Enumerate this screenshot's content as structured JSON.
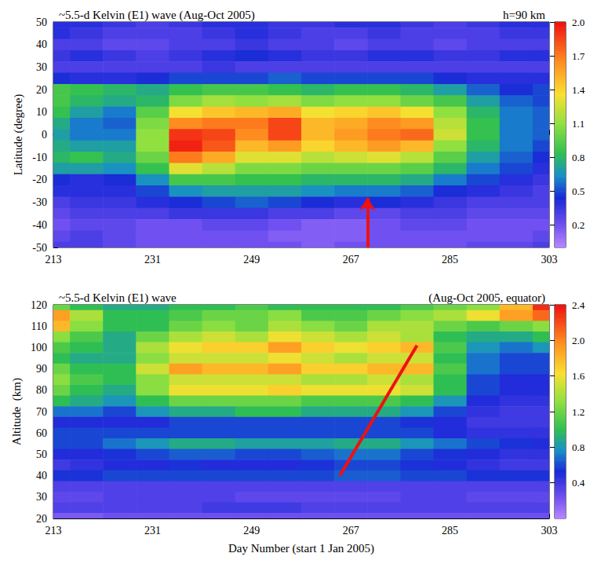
{
  "chart_data": [
    {
      "type": "heatmap",
      "title": "~5.5-d Kelvin (E1) wave (Aug-Oct 2005)",
      "annotation": "h=90 km",
      "ylabel": "Latitude (degree)",
      "x": [
        213,
        219,
        225,
        231,
        237,
        243,
        249,
        255,
        261,
        267,
        273,
        279,
        285,
        291,
        297,
        303
      ],
      "y": [
        50,
        45,
        40,
        35,
        30,
        25,
        20,
        15,
        10,
        5,
        0,
        -5,
        -10,
        -15,
        -20,
        -25,
        -30,
        -35,
        -40,
        -45,
        -50
      ],
      "z": [
        [
          0.4,
          0.4,
          0.35,
          0.3,
          0.35,
          0.4,
          0.4,
          0.35,
          0.35,
          0.4,
          0.4,
          0.35,
          0.3,
          0.35,
          0.4,
          0.4
        ],
        [
          0.4,
          0.35,
          0.3,
          0.3,
          0.3,
          0.35,
          0.4,
          0.35,
          0.3,
          0.3,
          0.35,
          0.3,
          0.3,
          0.3,
          0.35,
          0.35
        ],
        [
          0.3,
          0.3,
          0.25,
          0.25,
          0.3,
          0.3,
          0.35,
          0.3,
          0.3,
          0.25,
          0.3,
          0.3,
          0.25,
          0.3,
          0.3,
          0.3
        ],
        [
          0.35,
          0.4,
          0.35,
          0.3,
          0.35,
          0.4,
          0.45,
          0.4,
          0.35,
          0.35,
          0.4,
          0.4,
          0.35,
          0.35,
          0.4,
          0.4
        ],
        [
          0.3,
          0.3,
          0.3,
          0.3,
          0.3,
          0.35,
          0.3,
          0.3,
          0.3,
          0.3,
          0.3,
          0.3,
          0.3,
          0.3,
          0.3,
          0.3
        ],
        [
          0.45,
          0.4,
          0.4,
          0.45,
          0.5,
          0.5,
          0.5,
          0.55,
          0.5,
          0.5,
          0.5,
          0.5,
          0.45,
          0.4,
          0.4,
          0.4
        ],
        [
          0.9,
          0.85,
          0.8,
          0.75,
          0.85,
          0.9,
          0.9,
          0.85,
          0.8,
          0.85,
          0.85,
          0.8,
          0.7,
          0.55,
          0.45,
          0.5
        ],
        [
          0.9,
          0.8,
          0.75,
          0.8,
          1.05,
          1.15,
          1.1,
          1.15,
          1.05,
          1.1,
          1.1,
          1.0,
          0.9,
          0.7,
          0.55,
          0.5
        ],
        [
          0.85,
          0.7,
          0.6,
          0.95,
          1.35,
          1.45,
          1.5,
          1.55,
          1.35,
          1.4,
          1.45,
          1.35,
          1.1,
          0.8,
          0.6,
          0.55
        ],
        [
          0.75,
          0.6,
          0.55,
          1.05,
          1.65,
          1.7,
          1.7,
          1.85,
          1.5,
          1.55,
          1.65,
          1.6,
          1.2,
          0.85,
          0.6,
          0.55
        ],
        [
          0.7,
          0.6,
          0.6,
          1.1,
          1.9,
          1.85,
          1.65,
          1.85,
          1.5,
          1.6,
          1.7,
          1.75,
          1.25,
          0.85,
          0.6,
          0.55
        ],
        [
          0.75,
          0.7,
          0.7,
          1.1,
          1.95,
          1.8,
          1.5,
          1.6,
          1.4,
          1.5,
          1.6,
          1.5,
          1.1,
          0.8,
          0.6,
          0.5
        ],
        [
          0.8,
          0.85,
          0.75,
          1.0,
          1.7,
          1.55,
          1.3,
          1.3,
          1.2,
          1.25,
          1.3,
          1.2,
          0.95,
          0.7,
          0.55,
          0.45
        ],
        [
          0.7,
          0.7,
          0.65,
          0.85,
          1.3,
          1.2,
          1.05,
          1.05,
          1.0,
          1.0,
          1.0,
          0.95,
          0.8,
          0.6,
          0.5,
          0.4
        ],
        [
          0.45,
          0.4,
          0.45,
          0.65,
          0.9,
          0.9,
          0.85,
          0.85,
          0.8,
          0.8,
          0.8,
          0.75,
          0.6,
          0.5,
          0.4,
          0.35
        ],
        [
          0.4,
          0.4,
          0.4,
          0.5,
          0.65,
          0.7,
          0.7,
          0.7,
          0.65,
          0.6,
          0.6,
          0.55,
          0.45,
          0.4,
          0.35,
          0.3
        ],
        [
          0.3,
          0.35,
          0.35,
          0.4,
          0.45,
          0.5,
          0.55,
          0.5,
          0.45,
          0.4,
          0.45,
          0.4,
          0.35,
          0.3,
          0.3,
          0.3
        ],
        [
          0.25,
          0.3,
          0.3,
          0.3,
          0.35,
          0.35,
          0.35,
          0.3,
          0.3,
          0.25,
          0.25,
          0.3,
          0.3,
          0.25,
          0.25,
          0.25
        ],
        [
          0.2,
          0.25,
          0.25,
          0.2,
          0.2,
          0.25,
          0.25,
          0.2,
          0.15,
          0.15,
          0.2,
          0.25,
          0.25,
          0.2,
          0.2,
          0.2
        ],
        [
          0.25,
          0.3,
          0.25,
          0.2,
          0.2,
          0.2,
          0.2,
          0.15,
          0.15,
          0.15,
          0.2,
          0.2,
          0.2,
          0.2,
          0.2,
          0.25
        ],
        [
          0.3,
          0.3,
          0.25,
          0.2,
          0.2,
          0.2,
          0.2,
          0.2,
          0.15,
          0.2,
          0.2,
          0.2,
          0.2,
          0.25,
          0.25,
          0.3
        ]
      ],
      "xlim": [
        213,
        303
      ],
      "xticks": [
        213,
        231,
        249,
        267,
        285,
        303
      ],
      "ylim": [
        -50,
        50
      ],
      "yticks": [
        -50,
        -40,
        -30,
        -20,
        -10,
        0,
        10,
        20,
        30,
        40,
        50
      ],
      "colorbar": {
        "range": [
          0,
          2.0
        ],
        "ticks": [
          0.2,
          0.5,
          0.8,
          1.1,
          1.4,
          1.7,
          {
            "value": 2.0,
            "label": "2.0"
          }
        ]
      },
      "marks": [
        {
          "type": "arrow",
          "color": "#ee1111",
          "points": [
            [
              270,
              -50
            ],
            [
              270,
              -28
            ]
          ]
        }
      ]
    },
    {
      "type": "heatmap",
      "title": "~5.5-d Kelvin (E1) wave",
      "annotation": "(Aug-Oct 2005, equator)",
      "xlabel": "Day Number (start 1 Jan 2005)",
      "ylabel": "Altitude  (km)",
      "x": [
        213,
        219,
        225,
        231,
        237,
        243,
        249,
        255,
        261,
        267,
        273,
        279,
        285,
        291,
        297,
        303
      ],
      "y": [
        120,
        115,
        110,
        105,
        100,
        95,
        90,
        85,
        80,
        75,
        70,
        65,
        60,
        55,
        50,
        45,
        40,
        35,
        30,
        25,
        20
      ],
      "z": [
        [
          1.2,
          1.0,
          0.9,
          0.9,
          1.0,
          1.0,
          1.1,
          1.0,
          1.0,
          1.0,
          1.0,
          1.1,
          1.2,
          1.3,
          1.8,
          2.3
        ],
        [
          1.9,
          1.4,
          1.0,
          1.0,
          1.1,
          1.2,
          1.2,
          1.3,
          1.1,
          1.1,
          1.2,
          1.3,
          1.4,
          1.6,
          1.9,
          2.1
        ],
        [
          1.8,
          1.3,
          1.0,
          1.0,
          1.2,
          1.3,
          1.2,
          1.4,
          1.3,
          1.2,
          1.4,
          1.4,
          1.2,
          1.1,
          1.2,
          1.3
        ],
        [
          1.3,
          1.1,
          0.9,
          1.2,
          1.4,
          1.5,
          1.4,
          1.6,
          1.5,
          1.4,
          1.5,
          1.4,
          1.0,
          0.9,
          0.9,
          1.0
        ],
        [
          1.1,
          1.0,
          0.9,
          1.4,
          1.6,
          1.7,
          1.7,
          1.9,
          1.7,
          1.6,
          1.7,
          1.8,
          1.1,
          0.8,
          0.7,
          0.8
        ],
        [
          1.0,
          0.9,
          0.9,
          1.3,
          1.5,
          1.5,
          1.5,
          1.6,
          1.5,
          1.4,
          1.5,
          1.5,
          1.0,
          0.7,
          0.6,
          0.6
        ],
        [
          1.2,
          1.0,
          1.0,
          1.5,
          1.9,
          1.8,
          1.8,
          1.9,
          1.7,
          1.7,
          1.8,
          1.8,
          1.1,
          0.7,
          0.6,
          0.6
        ],
        [
          1.3,
          1.1,
          1.0,
          1.3,
          1.5,
          1.5,
          1.5,
          1.5,
          1.4,
          1.4,
          1.5,
          1.4,
          1.0,
          0.6,
          0.5,
          0.5
        ],
        [
          1.2,
          1.0,
          0.9,
          1.3,
          1.6,
          1.6,
          1.6,
          1.7,
          1.6,
          1.6,
          1.6,
          1.5,
          1.0,
          0.6,
          0.5,
          0.5
        ],
        [
          1.0,
          0.9,
          0.8,
          1.0,
          1.2,
          1.2,
          1.2,
          1.2,
          1.1,
          1.1,
          1.1,
          1.0,
          0.8,
          0.5,
          0.45,
          0.45
        ],
        [
          0.7,
          0.7,
          0.6,
          0.8,
          0.9,
          0.9,
          1.0,
          1.0,
          0.9,
          0.9,
          0.9,
          0.8,
          0.6,
          0.45,
          0.4,
          0.4
        ],
        [
          0.5,
          0.5,
          0.5,
          0.5,
          0.6,
          0.6,
          0.6,
          0.6,
          0.6,
          0.6,
          0.6,
          0.55,
          0.5,
          0.4,
          0.4,
          0.4
        ],
        [
          0.6,
          0.6,
          0.6,
          0.6,
          0.6,
          0.6,
          0.6,
          0.6,
          0.6,
          0.6,
          0.6,
          0.6,
          0.5,
          0.45,
          0.45,
          0.45
        ],
        [
          0.6,
          0.6,
          0.7,
          0.8,
          0.9,
          0.9,
          0.85,
          0.85,
          0.85,
          0.9,
          0.9,
          0.8,
          0.7,
          0.6,
          0.55,
          0.5
        ],
        [
          0.5,
          0.5,
          0.55,
          0.6,
          0.65,
          0.65,
          0.6,
          0.6,
          0.65,
          0.7,
          0.7,
          0.6,
          0.55,
          0.5,
          0.45,
          0.45
        ],
        [
          0.4,
          0.45,
          0.5,
          0.5,
          0.55,
          0.5,
          0.5,
          0.5,
          0.55,
          0.6,
          0.6,
          0.55,
          0.5,
          0.45,
          0.4,
          0.4
        ],
        [
          0.55,
          0.55,
          0.6,
          0.6,
          0.6,
          0.6,
          0.6,
          0.6,
          0.6,
          0.65,
          0.65,
          0.6,
          0.6,
          0.55,
          0.55,
          0.55
        ],
        [
          0.35,
          0.35,
          0.35,
          0.35,
          0.35,
          0.35,
          0.35,
          0.35,
          0.35,
          0.35,
          0.35,
          0.35,
          0.35,
          0.35,
          0.35,
          0.35
        ],
        [
          0.3,
          0.3,
          0.35,
          0.35,
          0.35,
          0.35,
          0.3,
          0.3,
          0.3,
          0.3,
          0.3,
          0.35,
          0.35,
          0.3,
          0.3,
          0.3
        ],
        [
          0.35,
          0.35,
          0.35,
          0.35,
          0.35,
          0.4,
          0.4,
          0.4,
          0.35,
          0.35,
          0.35,
          0.35,
          0.35,
          0.35,
          0.35,
          0.35
        ],
        [
          0.2,
          0.2,
          0.25,
          0.25,
          0.25,
          0.25,
          0.25,
          0.25,
          0.25,
          0.25,
          0.25,
          0.25,
          0.25,
          0.25,
          0.25,
          0.25
        ]
      ],
      "xlim": [
        213,
        303
      ],
      "xticks": [
        213,
        231,
        249,
        267,
        285,
        303
      ],
      "ylim": [
        20,
        120
      ],
      "yticks": [
        20,
        30,
        40,
        50,
        60,
        70,
        80,
        90,
        100,
        110,
        120
      ],
      "colorbar": {
        "range": [
          0,
          2.4
        ],
        "ticks": [
          0.4,
          0.8,
          1.2,
          1.6,
          {
            "value": 2.0,
            "label": "2.0"
          },
          2.4
        ]
      },
      "marks": [
        {
          "type": "line",
          "color": "#ee1111",
          "points": [
            [
              265,
              40
            ],
            [
              279,
              101
            ]
          ]
        }
      ]
    }
  ]
}
